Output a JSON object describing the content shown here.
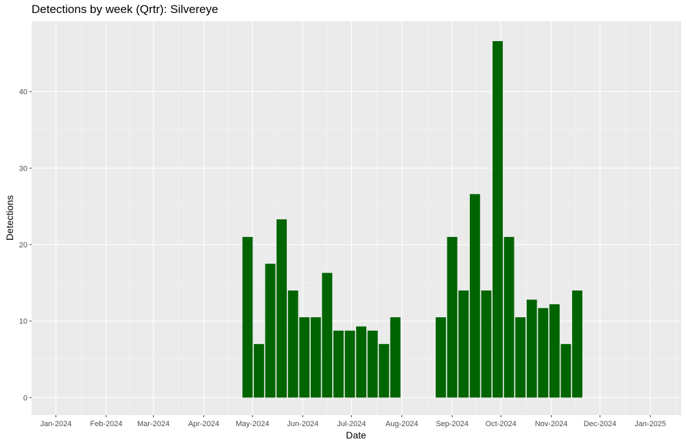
{
  "chart_data": {
    "type": "bar",
    "title": "Detections by week (Qrtr): Silvereye",
    "xlabel": "Date",
    "ylabel": "Detections",
    "x_ticks": [
      "Jan-2024",
      "Feb-2024",
      "Mar-2024",
      "Apr-2024",
      "May-2024",
      "Jun-2024",
      "Jul-2024",
      "Aug-2024",
      "Sep-2024",
      "Oct-2024",
      "Nov-2024",
      "Dec-2024",
      "Jan-2025"
    ],
    "x_range": [
      "2023-12-17",
      "2025-01-20"
    ],
    "y_ticks": [
      0,
      10,
      20,
      30,
      40
    ],
    "ylim": [
      -2.3,
      49.2
    ],
    "bar_color": "#006400",
    "panel_background": "#ebebeb",
    "grid": true,
    "bars": [
      {
        "x": "2024-04-28",
        "y": 21.0
      },
      {
        "x": "2024-05-05",
        "y": 7.0
      },
      {
        "x": "2024-05-12",
        "y": 17.5
      },
      {
        "x": "2024-05-19",
        "y": 23.3
      },
      {
        "x": "2024-05-26",
        "y": 14.0
      },
      {
        "x": "2024-06-02",
        "y": 10.5
      },
      {
        "x": "2024-06-09",
        "y": 10.5
      },
      {
        "x": "2024-06-16",
        "y": 16.3
      },
      {
        "x": "2024-06-23",
        "y": 8.75
      },
      {
        "x": "2024-06-30",
        "y": 8.75
      },
      {
        "x": "2024-07-07",
        "y": 9.3
      },
      {
        "x": "2024-07-14",
        "y": 8.75
      },
      {
        "x": "2024-07-21",
        "y": 7.0
      },
      {
        "x": "2024-07-28",
        "y": 10.5
      },
      {
        "x": "2024-08-25",
        "y": 10.5
      },
      {
        "x": "2024-09-01",
        "y": 21.0
      },
      {
        "x": "2024-09-08",
        "y": 14.0
      },
      {
        "x": "2024-09-15",
        "y": 26.6
      },
      {
        "x": "2024-09-22",
        "y": 14.0
      },
      {
        "x": "2024-09-29",
        "y": 46.6
      },
      {
        "x": "2024-10-06",
        "y": 21.0
      },
      {
        "x": "2024-10-13",
        "y": 10.5
      },
      {
        "x": "2024-10-20",
        "y": 12.8
      },
      {
        "x": "2024-10-27",
        "y": 11.7
      },
      {
        "x": "2024-11-03",
        "y": 12.2
      },
      {
        "x": "2024-11-10",
        "y": 7.0
      },
      {
        "x": "2024-11-17",
        "y": 14.0
      }
    ]
  }
}
